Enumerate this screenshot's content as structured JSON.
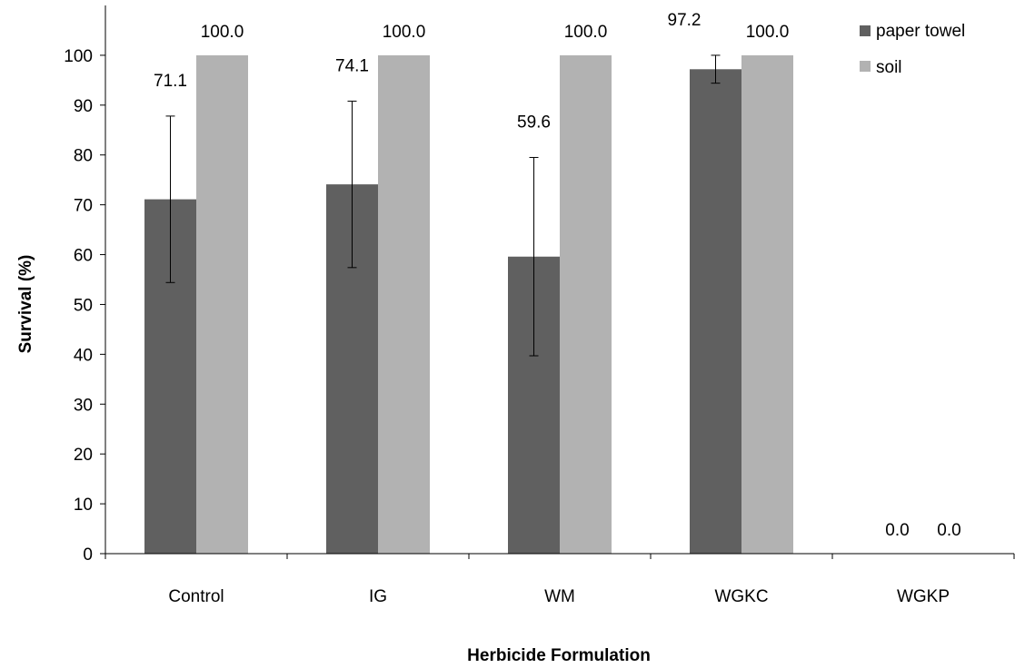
{
  "chart_data": {
    "type": "bar",
    "categories": [
      "Control",
      "IG",
      "WM",
      "WGKC",
      "WGKP"
    ],
    "series": [
      {
        "name": "paper towel",
        "color": "#606060",
        "values": [
          71.1,
          74.1,
          59.6,
          97.2,
          0.0
        ],
        "value_labels": [
          "71.1",
          "74.1",
          "59.6",
          "97.2",
          "0.0"
        ],
        "error": [
          16.7,
          16.7,
          19.9,
          2.8,
          0
        ]
      },
      {
        "name": "soil",
        "color": "#b2b2b2",
        "values": [
          100.0,
          100.0,
          100.0,
          100.0,
          0.0
        ],
        "value_labels": [
          "100.0",
          "100.0",
          "100.0",
          "100.0",
          "0.0"
        ],
        "error": [
          0,
          0,
          0,
          0,
          0
        ]
      }
    ],
    "xlabel": "Herbicide Formulation",
    "ylabel": "Survival (%)",
    "ylim": [
      0,
      110
    ],
    "yticks": [
      0,
      10,
      20,
      30,
      40,
      50,
      60,
      70,
      80,
      90,
      100
    ],
    "grid": false,
    "legend_position": "top-right"
  }
}
